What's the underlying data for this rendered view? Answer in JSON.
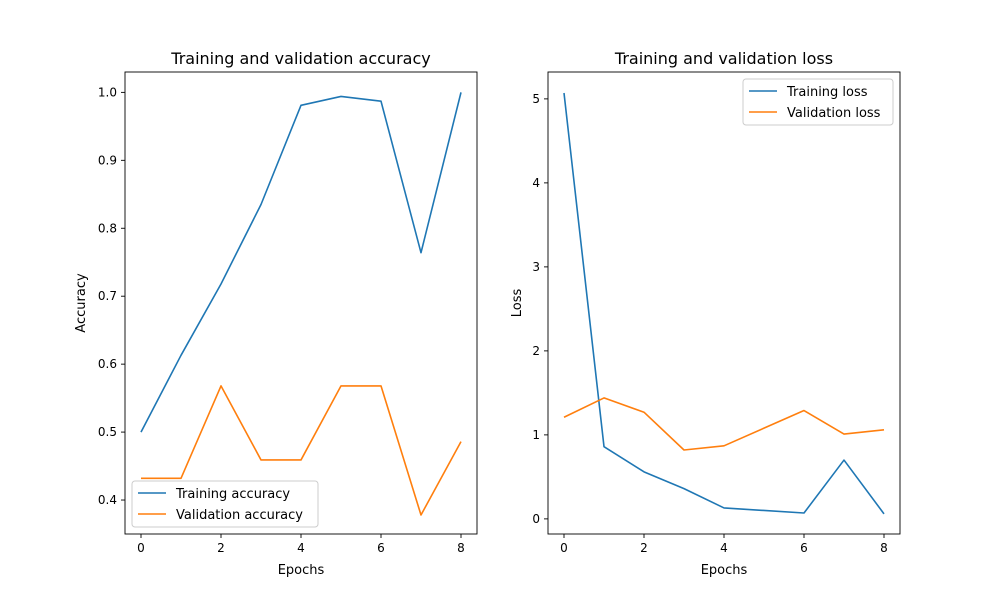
{
  "chart_data": [
    {
      "type": "line",
      "title": "Training and validation accuracy",
      "xlabel": "Epochs",
      "ylabel": "Accuracy",
      "x": [
        0,
        1,
        2,
        3,
        4,
        5,
        6,
        7,
        8
      ],
      "xlim": [
        -0.4,
        8.4
      ],
      "ylim": [
        0.35,
        1.03
      ],
      "xticks": [
        0,
        2,
        4,
        6,
        8
      ],
      "yticks": [
        0.4,
        0.5,
        0.6,
        0.7,
        0.8,
        0.9,
        1.0
      ],
      "ytick_decimals": 1,
      "grid": false,
      "legend_position": "lower-left",
      "series": [
        {
          "name": "Training accuracy",
          "color": "#1f77b4",
          "values": [
            0.5,
            0.613,
            0.718,
            0.835,
            0.981,
            0.994,
            0.987,
            0.764,
            1.0
          ]
        },
        {
          "name": "Validation accuracy",
          "color": "#ff7f0e",
          "values": [
            0.432,
            0.432,
            0.568,
            0.459,
            0.459,
            0.568,
            0.568,
            0.378,
            0.486
          ]
        }
      ]
    },
    {
      "type": "line",
      "title": "Training and validation loss",
      "xlabel": "Epochs",
      "ylabel": "Loss",
      "x": [
        0,
        1,
        2,
        3,
        4,
        5,
        6,
        7,
        8
      ],
      "xlim": [
        -0.4,
        8.4
      ],
      "ylim": [
        -0.18,
        5.32
      ],
      "xticks": [
        0,
        2,
        4,
        6,
        8
      ],
      "yticks": [
        0,
        1,
        2,
        3,
        4,
        5
      ],
      "ytick_decimals": 0,
      "grid": false,
      "legend_position": "upper-right",
      "series": [
        {
          "name": "Training loss",
          "color": "#1f77b4",
          "values": [
            5.07,
            0.86,
            0.56,
            0.36,
            0.13,
            0.1,
            0.07,
            0.7,
            0.06
          ]
        },
        {
          "name": "Validation loss",
          "color": "#ff7f0e",
          "values": [
            1.21,
            1.44,
            1.27,
            0.82,
            0.87,
            1.08,
            1.29,
            1.01,
            1.06
          ]
        }
      ]
    }
  ]
}
